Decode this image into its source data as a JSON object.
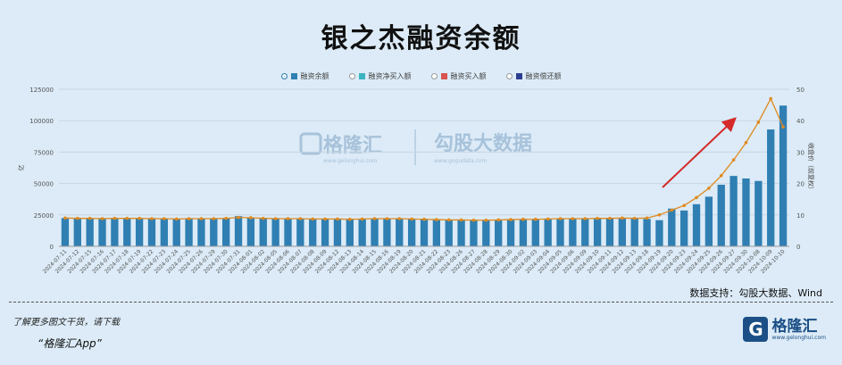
{
  "title": "银之杰融资余额",
  "legend": [
    {
      "label": "融资余额",
      "color": "#2f7fb3",
      "selected": true
    },
    {
      "label": "融资净买入额",
      "color": "#3cb4c0",
      "selected": false
    },
    {
      "label": "融资买入额",
      "color": "#d9534f",
      "selected": false
    },
    {
      "label": "融资偿还额",
      "color": "#2c3e8f",
      "selected": false
    }
  ],
  "watermark": {
    "left_brand": "格隆汇",
    "left_url": "www.gelonghui.com",
    "right_brand": "勾股大数据",
    "right_url": "www.gogudata.com"
  },
  "source": "数据支持：勾股大数据、Wind",
  "footer": {
    "promo": "了解更多图文干货，请下载",
    "app": "“格隆汇App”",
    "logo_letter": "G",
    "logo_name": "格隆汇",
    "logo_url": "www.gelonghui.com"
  },
  "chart_data": {
    "type": "bar",
    "ylabel_left": "亿",
    "ylabel_right": "收盘价（前复权）",
    "ylim_left": [
      0,
      125000
    ],
    "ylim_right": [
      0,
      50
    ],
    "yticks_left": [
      "0",
      "25000",
      "50000",
      "75000",
      "100000",
      "125000"
    ],
    "yticks_right": [
      "0",
      "10",
      "20",
      "30",
      "40",
      "50"
    ],
    "categories": [
      "2024-07-11",
      "2024-07-12",
      "2024-07-15",
      "2024-07-16",
      "2024-07-17",
      "2024-07-18",
      "2024-07-19",
      "2024-07-22",
      "2024-07-23",
      "2024-07-24",
      "2024-07-25",
      "2024-07-26",
      "2024-07-29",
      "2024-07-30",
      "2024-07-31",
      "2024-08-01",
      "2024-08-02",
      "2024-08-05",
      "2024-08-06",
      "2024-08-07",
      "2024-08-08",
      "2024-08-09",
      "2024-08-12",
      "2024-08-13",
      "2024-08-14",
      "2024-08-15",
      "2024-08-16",
      "2024-08-19",
      "2024-08-20",
      "2024-08-21",
      "2024-08-22",
      "2024-08-23",
      "2024-08-26",
      "2024-08-27",
      "2024-08-28",
      "2024-08-29",
      "2024-08-30",
      "2024-09-02",
      "2024-09-03",
      "2024-09-04",
      "2024-09-05",
      "2024-09-06",
      "2024-09-09",
      "2024-09-10",
      "2024-09-11",
      "2024-09-12",
      "2024-09-13",
      "2024-09-18",
      "2024-09-19",
      "2024-09-20",
      "2024-09-23",
      "2024-09-24",
      "2024-09-25",
      "2024-09-26",
      "2024-09-27",
      "2024-09-30",
      "2024-10-08",
      "2024-10-09",
      "2024-10-10"
    ],
    "series": [
      {
        "name": "融资余额",
        "kind": "bar",
        "axis": "left",
        "color": "#2f7fb3",
        "values": [
          22500,
          22200,
          22300,
          22400,
          22300,
          22200,
          22300,
          22400,
          22300,
          22100,
          22200,
          22300,
          22300,
          22100,
          24000,
          22900,
          22600,
          22400,
          22300,
          22200,
          22000,
          22100,
          22000,
          21900,
          22000,
          22100,
          22200,
          22300,
          21900,
          21800,
          21600,
          21200,
          21200,
          21100,
          21000,
          21000,
          21200,
          21500,
          21600,
          21700,
          22000,
          22000,
          22100,
          22300,
          22300,
          22400,
          22000,
          21800,
          20800,
          30000,
          28500,
          33500,
          39500,
          49000,
          56000,
          54000,
          52000,
          93000,
          112000
        ]
      },
      {
        "name": "收盘价（前复权）",
        "kind": "line",
        "axis": "right",
        "color": "#e08a1e",
        "values": [
          9.0,
          8.9,
          8.9,
          8.8,
          8.9,
          8.9,
          8.9,
          8.8,
          8.8,
          8.7,
          8.8,
          8.8,
          8.8,
          8.9,
          9.2,
          9.1,
          8.9,
          8.8,
          8.8,
          8.8,
          8.7,
          8.7,
          8.7,
          8.6,
          8.7,
          8.8,
          8.8,
          8.8,
          8.7,
          8.6,
          8.5,
          8.4,
          8.4,
          8.3,
          8.3,
          8.4,
          8.5,
          8.6,
          8.6,
          8.7,
          8.8,
          8.8,
          8.8,
          8.9,
          8.9,
          9.0,
          8.9,
          9.0,
          10.0,
          11.5,
          13.0,
          15.5,
          18.5,
          22.5,
          27.5,
          33.0,
          39.5,
          47.0,
          38.0
        ]
      }
    ]
  }
}
